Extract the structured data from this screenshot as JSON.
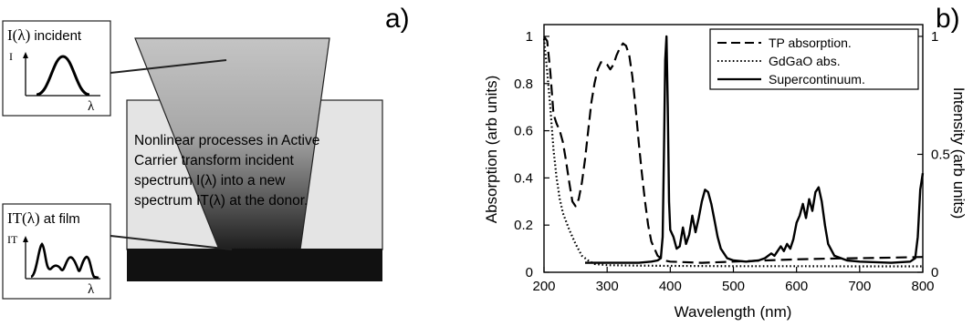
{
  "panel_a": {
    "label": "a)",
    "incident_box": {
      "title_symbol": "I(λ)",
      "title_suffix": " incident",
      "y_axis": "I",
      "x_axis": "λ"
    },
    "film_box": {
      "title_symbol": "IT(λ)",
      "title_suffix": " at film",
      "y_axis": "IT",
      "x_axis": "λ"
    },
    "description_lines": [
      "Nonlinear processes in Active",
      "Carrier transform incident",
      "spectrum I(λ) into a new",
      "spectrum IT(λ) at the donor."
    ],
    "colors": {
      "beam_top": "#c4c4c4",
      "beam_bottom": "#1e1e1e",
      "carrier": "#e4e4e4",
      "film": "#111111"
    }
  },
  "panel_b": {
    "label": "b)",
    "chart_data": {
      "type": "line",
      "xlabel": "Wavelength (nm)",
      "ylabel": "Absorption (arb units)",
      "y2label": "Intensity (arb units)",
      "xlim": [
        200,
        800
      ],
      "ylim": [
        0,
        1.05
      ],
      "y2lim": [
        0,
        1.05
      ],
      "x_ticks": [
        200,
        300,
        400,
        500,
        600,
        700,
        800
      ],
      "y_ticks": [
        {
          "value": 0,
          "label": "0"
        },
        {
          "value": 0.2,
          "label": "0.2"
        },
        {
          "value": 0.4,
          "label": "0.4"
        },
        {
          "value": 0.6,
          "label": "0.6"
        },
        {
          "value": 0.8,
          "label": "0.8"
        },
        {
          "value": 1,
          "label": "1"
        }
      ],
      "y2_ticks": [
        {
          "value": 0,
          "label": "0"
        },
        {
          "value": 0.5,
          "label": "0.5"
        },
        {
          "value": 1,
          "label": "1"
        }
      ],
      "legend_position": "top-right",
      "grid": false,
      "series": [
        {
          "name": "TP absorption.",
          "axis": "left",
          "style": "dashed",
          "points": [
            [
              200,
              1.0
            ],
            [
              205,
              0.98
            ],
            [
              210,
              0.85
            ],
            [
              215,
              0.67
            ],
            [
              220,
              0.63
            ],
            [
              225,
              0.6
            ],
            [
              230,
              0.55
            ],
            [
              235,
              0.47
            ],
            [
              240,
              0.38
            ],
            [
              245,
              0.3
            ],
            [
              250,
              0.28
            ],
            [
              255,
              0.31
            ],
            [
              260,
              0.38
            ],
            [
              265,
              0.48
            ],
            [
              270,
              0.6
            ],
            [
              275,
              0.72
            ],
            [
              280,
              0.8
            ],
            [
              285,
              0.86
            ],
            [
              290,
              0.89
            ],
            [
              295,
              0.89
            ],
            [
              300,
              0.88
            ],
            [
              305,
              0.86
            ],
            [
              310,
              0.88
            ],
            [
              315,
              0.92
            ],
            [
              320,
              0.95
            ],
            [
              325,
              0.97
            ],
            [
              330,
              0.96
            ],
            [
              335,
              0.92
            ],
            [
              340,
              0.83
            ],
            [
              345,
              0.7
            ],
            [
              350,
              0.55
            ],
            [
              355,
              0.42
            ],
            [
              360,
              0.3
            ],
            [
              365,
              0.2
            ],
            [
              370,
              0.13
            ],
            [
              380,
              0.07
            ],
            [
              390,
              0.05
            ],
            [
              400,
              0.045
            ],
            [
              450,
              0.04
            ],
            [
              500,
              0.045
            ],
            [
              550,
              0.05
            ],
            [
              600,
              0.055
            ],
            [
              650,
              0.058
            ],
            [
              700,
              0.06
            ],
            [
              750,
              0.062
            ],
            [
              800,
              0.065
            ]
          ]
        },
        {
          "name": "GdGaO abs.",
          "axis": "left",
          "style": "dotted",
          "points": [
            [
              200,
              0.99
            ],
            [
              205,
              0.85
            ],
            [
              210,
              0.7
            ],
            [
              215,
              0.52
            ],
            [
              220,
              0.4
            ],
            [
              225,
              0.31
            ],
            [
              230,
              0.25
            ],
            [
              240,
              0.18
            ],
            [
              250,
              0.12
            ],
            [
              260,
              0.07
            ],
            [
              270,
              0.05
            ],
            [
              280,
              0.035
            ],
            [
              300,
              0.03
            ],
            [
              350,
              0.028
            ],
            [
              400,
              0.027
            ],
            [
              500,
              0.026
            ],
            [
              600,
              0.026
            ],
            [
              700,
              0.025
            ],
            [
              800,
              0.025
            ]
          ]
        },
        {
          "name": "Supercontinuum.",
          "axis": "right",
          "style": "solid",
          "points": [
            [
              265,
              0.04
            ],
            [
              300,
              0.04
            ],
            [
              350,
              0.04
            ],
            [
              370,
              0.045
            ],
            [
              380,
              0.05
            ],
            [
              385,
              0.06
            ],
            [
              388,
              0.15
            ],
            [
              390,
              0.5
            ],
            [
              392,
              0.9
            ],
            [
              394,
              1.0
            ],
            [
              396,
              0.7
            ],
            [
              398,
              0.3
            ],
            [
              400,
              0.18
            ],
            [
              405,
              0.15
            ],
            [
              410,
              0.1
            ],
            [
              415,
              0.11
            ],
            [
              420,
              0.19
            ],
            [
              425,
              0.12
            ],
            [
              430,
              0.16
            ],
            [
              435,
              0.24
            ],
            [
              440,
              0.17
            ],
            [
              445,
              0.23
            ],
            [
              450,
              0.3
            ],
            [
              455,
              0.35
            ],
            [
              460,
              0.34
            ],
            [
              465,
              0.29
            ],
            [
              470,
              0.22
            ],
            [
              475,
              0.15
            ],
            [
              480,
              0.1
            ],
            [
              490,
              0.06
            ],
            [
              500,
              0.05
            ],
            [
              520,
              0.045
            ],
            [
              540,
              0.05
            ],
            [
              550,
              0.06
            ],
            [
              560,
              0.08
            ],
            [
              565,
              0.07
            ],
            [
              570,
              0.09
            ],
            [
              575,
              0.11
            ],
            [
              580,
              0.09
            ],
            [
              585,
              0.12
            ],
            [
              590,
              0.1
            ],
            [
              595,
              0.14
            ],
            [
              600,
              0.21
            ],
            [
              605,
              0.24
            ],
            [
              610,
              0.29
            ],
            [
              615,
              0.23
            ],
            [
              620,
              0.31
            ],
            [
              625,
              0.26
            ],
            [
              630,
              0.34
            ],
            [
              635,
              0.36
            ],
            [
              640,
              0.3
            ],
            [
              645,
              0.2
            ],
            [
              650,
              0.12
            ],
            [
              660,
              0.07
            ],
            [
              680,
              0.05
            ],
            [
              700,
              0.045
            ],
            [
              750,
              0.04
            ],
            [
              780,
              0.045
            ],
            [
              788,
              0.06
            ],
            [
              792,
              0.15
            ],
            [
              796,
              0.35
            ],
            [
              800,
              0.42
            ]
          ]
        }
      ]
    }
  }
}
